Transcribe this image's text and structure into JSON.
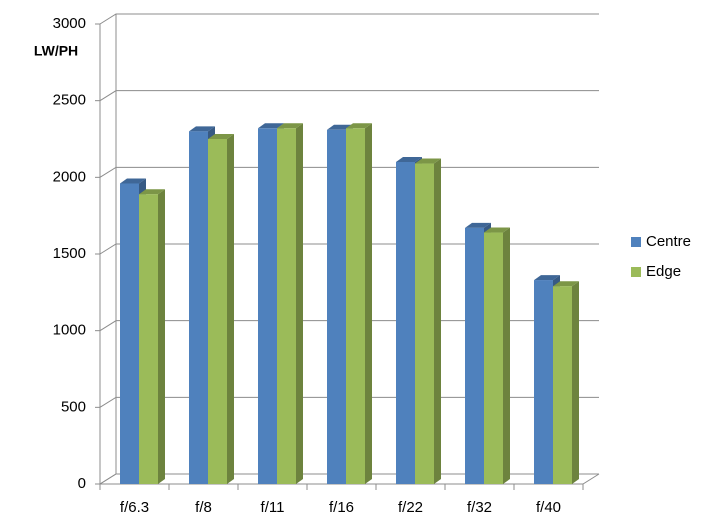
{
  "chart_data": {
    "type": "bar3d",
    "y_label": "LW/PH",
    "categories": [
      "f/6.3",
      "f/8",
      "f/11",
      "f/16",
      "f/22",
      "f/32",
      "f/40"
    ],
    "series": [
      {
        "name": "Centre",
        "color": "#4f81bd",
        "values": [
          1960,
          2300,
          2320,
          2310,
          2100,
          1670,
          1330
        ]
      },
      {
        "name": "Edge",
        "color": "#9bbb59",
        "values": [
          1890,
          2250,
          2320,
          2320,
          2090,
          1640,
          1290
        ]
      }
    ],
    "ylim": [
      0,
      3000
    ],
    "yticks": [
      0,
      500,
      1000,
      1500,
      2000,
      2500,
      3000
    ],
    "grid": true,
    "legend": "right"
  }
}
